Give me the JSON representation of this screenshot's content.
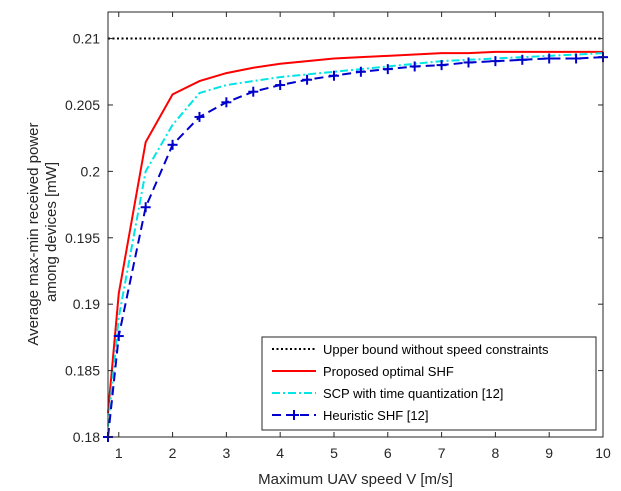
{
  "chart_data": {
    "type": "line",
    "xlabel": "Maximum UAV speed V [m/s]",
    "ylabel_lines": [
      "Average max-min received power",
      "among devices [mW]"
    ],
    "xlim": [
      0.8,
      10
    ],
    "ylim": [
      0.18,
      0.212
    ],
    "xticks": [
      1,
      2,
      3,
      4,
      5,
      6,
      7,
      8,
      9,
      10
    ],
    "xtick_labels": [
      "1",
      "2",
      "3",
      "4",
      "5",
      "6",
      "7",
      "8",
      "9",
      "10"
    ],
    "yticks": [
      0.18,
      0.185,
      0.19,
      0.195,
      0.2,
      0.205,
      0.21
    ],
    "ytick_labels": [
      "0.18",
      "0.185",
      "0.19",
      "0.195",
      "0.2",
      "0.205",
      "0.21"
    ],
    "grid": false,
    "legend_position": "bottom-right",
    "series": [
      {
        "name": "Upper bound without speed constraints",
        "color": "#000000",
        "style": "dotted",
        "marker": "none",
        "x": [
          0.8,
          10
        ],
        "y": [
          0.21,
          0.21
        ]
      },
      {
        "name": "Proposed optimal SHF",
        "color": "#ff0000",
        "style": "solid",
        "marker": "none",
        "x": [
          0.8,
          1,
          1.5,
          2,
          2.5,
          3,
          3.5,
          4,
          4.5,
          5,
          5.5,
          6,
          6.5,
          7,
          7.5,
          8,
          8.5,
          9,
          9.5,
          10
        ],
        "y": [
          0.1818,
          0.1908,
          0.2022,
          0.2058,
          0.2068,
          0.2074,
          0.2078,
          0.2081,
          0.2083,
          0.2085,
          0.2086,
          0.2087,
          0.2088,
          0.2089,
          0.2089,
          0.209,
          0.209,
          0.209,
          0.209,
          0.209
        ]
      },
      {
        "name": "SCP with time quantization [12]",
        "color": "#00e5e5",
        "style": "dashdot",
        "marker": "none",
        "x": [
          0.8,
          1,
          1.5,
          2,
          2.5,
          3,
          3.5,
          4,
          4.5,
          5,
          5.5,
          6,
          6.5,
          7,
          7.5,
          8,
          8.5,
          9,
          9.5,
          10
        ],
        "y": [
          0.1808,
          0.189,
          0.2,
          0.2035,
          0.2059,
          0.2065,
          0.2068,
          0.2071,
          0.2073,
          0.2075,
          0.2077,
          0.2079,
          0.2081,
          0.2083,
          0.2084,
          0.2085,
          0.2086,
          0.2087,
          0.2088,
          0.2089
        ]
      },
      {
        "name": "Heuristic SHF [12]",
        "color": "#0000cc",
        "style": "dashed",
        "marker": "plus",
        "x": [
          0.8,
          1,
          1.5,
          2,
          2.5,
          3,
          3.5,
          4,
          4.5,
          5,
          5.5,
          6,
          6.5,
          7,
          7.5,
          8,
          8.5,
          9,
          9.5,
          10
        ],
        "y": [
          0.18,
          0.1876,
          0.1973,
          0.202,
          0.2041,
          0.2052,
          0.206,
          0.2065,
          0.2069,
          0.2072,
          0.2075,
          0.2077,
          0.2079,
          0.208,
          0.2082,
          0.2083,
          0.2084,
          0.2085,
          0.2085,
          0.2086
        ]
      }
    ]
  }
}
